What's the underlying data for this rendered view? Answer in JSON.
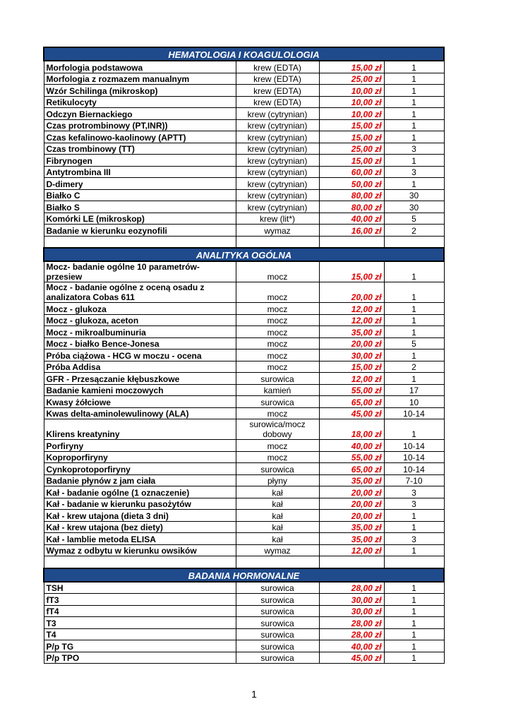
{
  "sections": [
    {
      "title": "HEMATOLOGIA I KOAGULOLOGIA",
      "rows": [
        [
          "Morfologia podstawowa",
          "krew (EDTA)",
          "15,00 zł",
          "1"
        ],
        [
          "Morfologia z rozmazem manualnym",
          "krew (EDTA)",
          "25,00 zł",
          "1"
        ],
        [
          "Wzór Schilinga (mikroskop)",
          "krew (EDTA)",
          "10,00 zł",
          "1"
        ],
        [
          "Retikulocyty",
          "krew (EDTA)",
          "10,00 zł",
          "1"
        ],
        [
          "Odczyn Biernackiego",
          "krew (cytrynian)",
          "10,00 zł",
          "1"
        ],
        [
          "Czas protrombinowy (PT,INR))",
          "krew (cytrynian)",
          "15,00 zł",
          "1"
        ],
        [
          "Czas kefalinowo-kaolinowy (APTT)",
          "krew (cytrynian)",
          "15,00 zł",
          "1"
        ],
        [
          "Czas trombinowy (TT)",
          "krew (cytrynian)",
          "25,00 zł",
          "3"
        ],
        [
          "Fibrynogen",
          "krew (cytrynian)",
          "15,00 zł",
          "1"
        ],
        [
          "Antytrombina III",
          "krew (cytrynian)",
          "60,00 zł",
          "3"
        ],
        [
          "D-dimery",
          "krew (cytrynian)",
          "50,00 zł",
          "1"
        ],
        [
          "Białko C",
          "krew (cytrynian)",
          "80,00 zł",
          "30"
        ],
        [
          "Białko S",
          "krew (cytrynian)",
          "80,00 zł",
          "30"
        ],
        [
          "Komórki LE (mikroskop)",
          "krew (lit*)",
          "40,00 zł",
          "5"
        ],
        [
          "Badanie w kierunku eozynofili",
          "wymaz",
          "16,00 zł",
          "2"
        ]
      ]
    },
    {
      "title": "ANALITYKA OGÓLNA",
      "rows": [
        [
          "Mocz- badanie ogólne 10 parametrów-przesiew",
          "mocz",
          "15,00 zł",
          "1"
        ],
        [
          "Mocz - badanie ogólne z oceną osadu z analizatora Cobas 611",
          "mocz",
          "20,00 zł",
          "1"
        ],
        [
          "Mocz - glukoza",
          "mocz",
          "12,00 zł",
          "1"
        ],
        [
          "Mocz - glukoza, aceton",
          "mocz",
          "12,00 zł",
          "1"
        ],
        [
          "Mocz - mikroalbuminuria",
          "mocz",
          "35,00 zł",
          "1"
        ],
        [
          "Mocz - białko Bence-Jonesa",
          "mocz",
          "20,00 zł",
          "5"
        ],
        [
          "Próba ciążowa - HCG w moczu - ocena",
          "mocz",
          "30,00 zł",
          "1"
        ],
        [
          "Próba Addisa",
          "mocz",
          "15,00 zł",
          "2"
        ],
        [
          "GFR - Przesączanie kłębuszkowe",
          "surowica",
          "12,00 zł",
          "1"
        ],
        [
          "Badanie kamieni moczowych",
          "kamień",
          "55,00 zł",
          "17"
        ],
        [
          "Kwasy żółciowe",
          "surowica",
          "65,00 zł",
          "10"
        ],
        [
          "Kwas delta-aminolewulinowy (ALA)",
          "mocz",
          "45,00 zł",
          "10-14"
        ],
        [
          "Klirens kreatyniny",
          "surowica/mocz dobowy",
          "18,00 zł",
          "1"
        ],
        [
          "Porfiryny",
          "mocz",
          "40,00 zł",
          "10-14"
        ],
        [
          "Koproporfiryny",
          "mocz",
          "55,00 zł",
          "10-14"
        ],
        [
          "Cynkoprotoporfiryny",
          "surowica",
          "65,00 zł",
          "10-14"
        ],
        [
          "Badanie płynów z jam ciała",
          "płyny",
          "35,00 zł",
          "7-10"
        ],
        [
          "Kał - badanie ogólne (1 oznaczenie)",
          "kał",
          "20,00 zł",
          "3"
        ],
        [
          "Kał - badanie w kierunku pasożytów",
          "kał",
          "20,00 zł",
          "3"
        ],
        [
          "Kał - krew utajona (dieta 3 dni)",
          "kał",
          "20,00 zł",
          "1"
        ],
        [
          "Kał - krew utajona (bez diety)",
          "kał",
          "35,00 zł",
          "1"
        ],
        [
          "Kał - lamblie metoda ELISA",
          "kał",
          "35,00 zł",
          "3"
        ],
        [
          "Wymaz z odbytu w kierunku owsików",
          "wymaz",
          "12,00 zł",
          "1"
        ]
      ]
    },
    {
      "title": "BADANIA HORMONALNE",
      "rows": [
        [
          "TSH",
          "surowica",
          "28,00 zł",
          "1"
        ],
        [
          "fT3",
          "surowica",
          "30,00 zł",
          "1"
        ],
        [
          "fT4",
          "surowica",
          "30,00 zł",
          "1"
        ],
        [
          "T3",
          "surowica",
          "28,00 zł",
          "1"
        ],
        [
          "T4",
          "surowica",
          "28,00 zł",
          "1"
        ],
        [
          "P/p TG",
          "surowica",
          "40,00 zł",
          "1"
        ],
        [
          "P/p TPO",
          "surowica",
          "45,00 zł",
          "1"
        ]
      ]
    }
  ],
  "page_number": "1"
}
